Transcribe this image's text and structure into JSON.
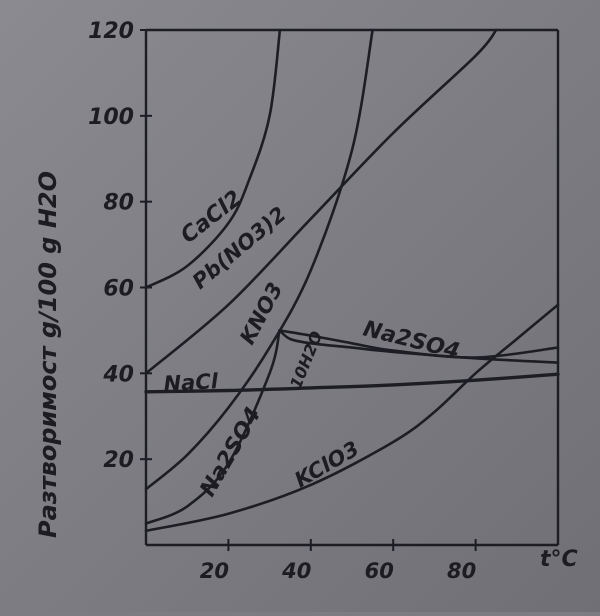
{
  "chart_data": {
    "type": "line",
    "ylabel": "Разтворимост g/100 g H2O",
    "xlabel": "t°C",
    "xlim": [
      0,
      100
    ],
    "ylim": [
      0,
      120
    ],
    "x_ticks": [
      "20",
      "40",
      "60",
      "80"
    ],
    "y_ticks": [
      "20",
      "40",
      "60",
      "80",
      "100",
      "120"
    ],
    "grid": false,
    "series": [
      {
        "name": "CaCl2",
        "x": [
          0,
          10,
          20,
          25,
          30,
          32.5
        ],
        "y": [
          60,
          65,
          75,
          85,
          100,
          120
        ]
      },
      {
        "name": "Pb(NO3)2",
        "x": [
          0,
          20,
          40,
          60,
          80,
          85
        ],
        "y": [
          40,
          56,
          76,
          96,
          114,
          120
        ]
      },
      {
        "name": "KNO3",
        "x": [
          0,
          10,
          20,
          30,
          40,
          50,
          55
        ],
        "y": [
          13,
          21,
          32,
          46,
          64,
          92,
          120
        ]
      },
      {
        "name": "NaCl",
        "x": [
          0,
          20,
          40,
          60,
          80,
          100
        ],
        "y": [
          35.7,
          36,
          36.6,
          37.3,
          38.4,
          39.8
        ]
      },
      {
        "name": "Na2SO4",
        "x": [
          0,
          10,
          20,
          30,
          32.4
        ],
        "y": [
          5,
          9,
          19,
          40,
          50
        ]
      },
      {
        "name": "Na2SO4·10H2O",
        "x": [
          32.4,
          35,
          40,
          50,
          60,
          80,
          100
        ],
        "y": [
          50,
          48,
          47,
          46,
          45,
          43.5,
          42.5
        ]
      },
      {
        "name": "Na2SO4 (anhydrous)",
        "x": [
          32.4,
          40,
          50,
          60,
          80,
          100
        ],
        "y": [
          50,
          48.8,
          47,
          45.3,
          43.7,
          46
        ]
      },
      {
        "name": "KClO3",
        "x": [
          0,
          20,
          40,
          60,
          70,
          80,
          90,
          100
        ],
        "y": [
          3.3,
          7.3,
          14,
          24,
          31,
          40,
          48,
          56
        ]
      }
    ],
    "labels": {
      "cacl2": "CaCl2",
      "pbno3": "Pb(NO3)2",
      "kno3": "KNO3",
      "nacl": "NaCl",
      "na2so4": "Na2SO4",
      "na2so4_top": "Na2SO4",
      "hydrate": "10H2O",
      "kclo3": "KClO3"
    }
  }
}
